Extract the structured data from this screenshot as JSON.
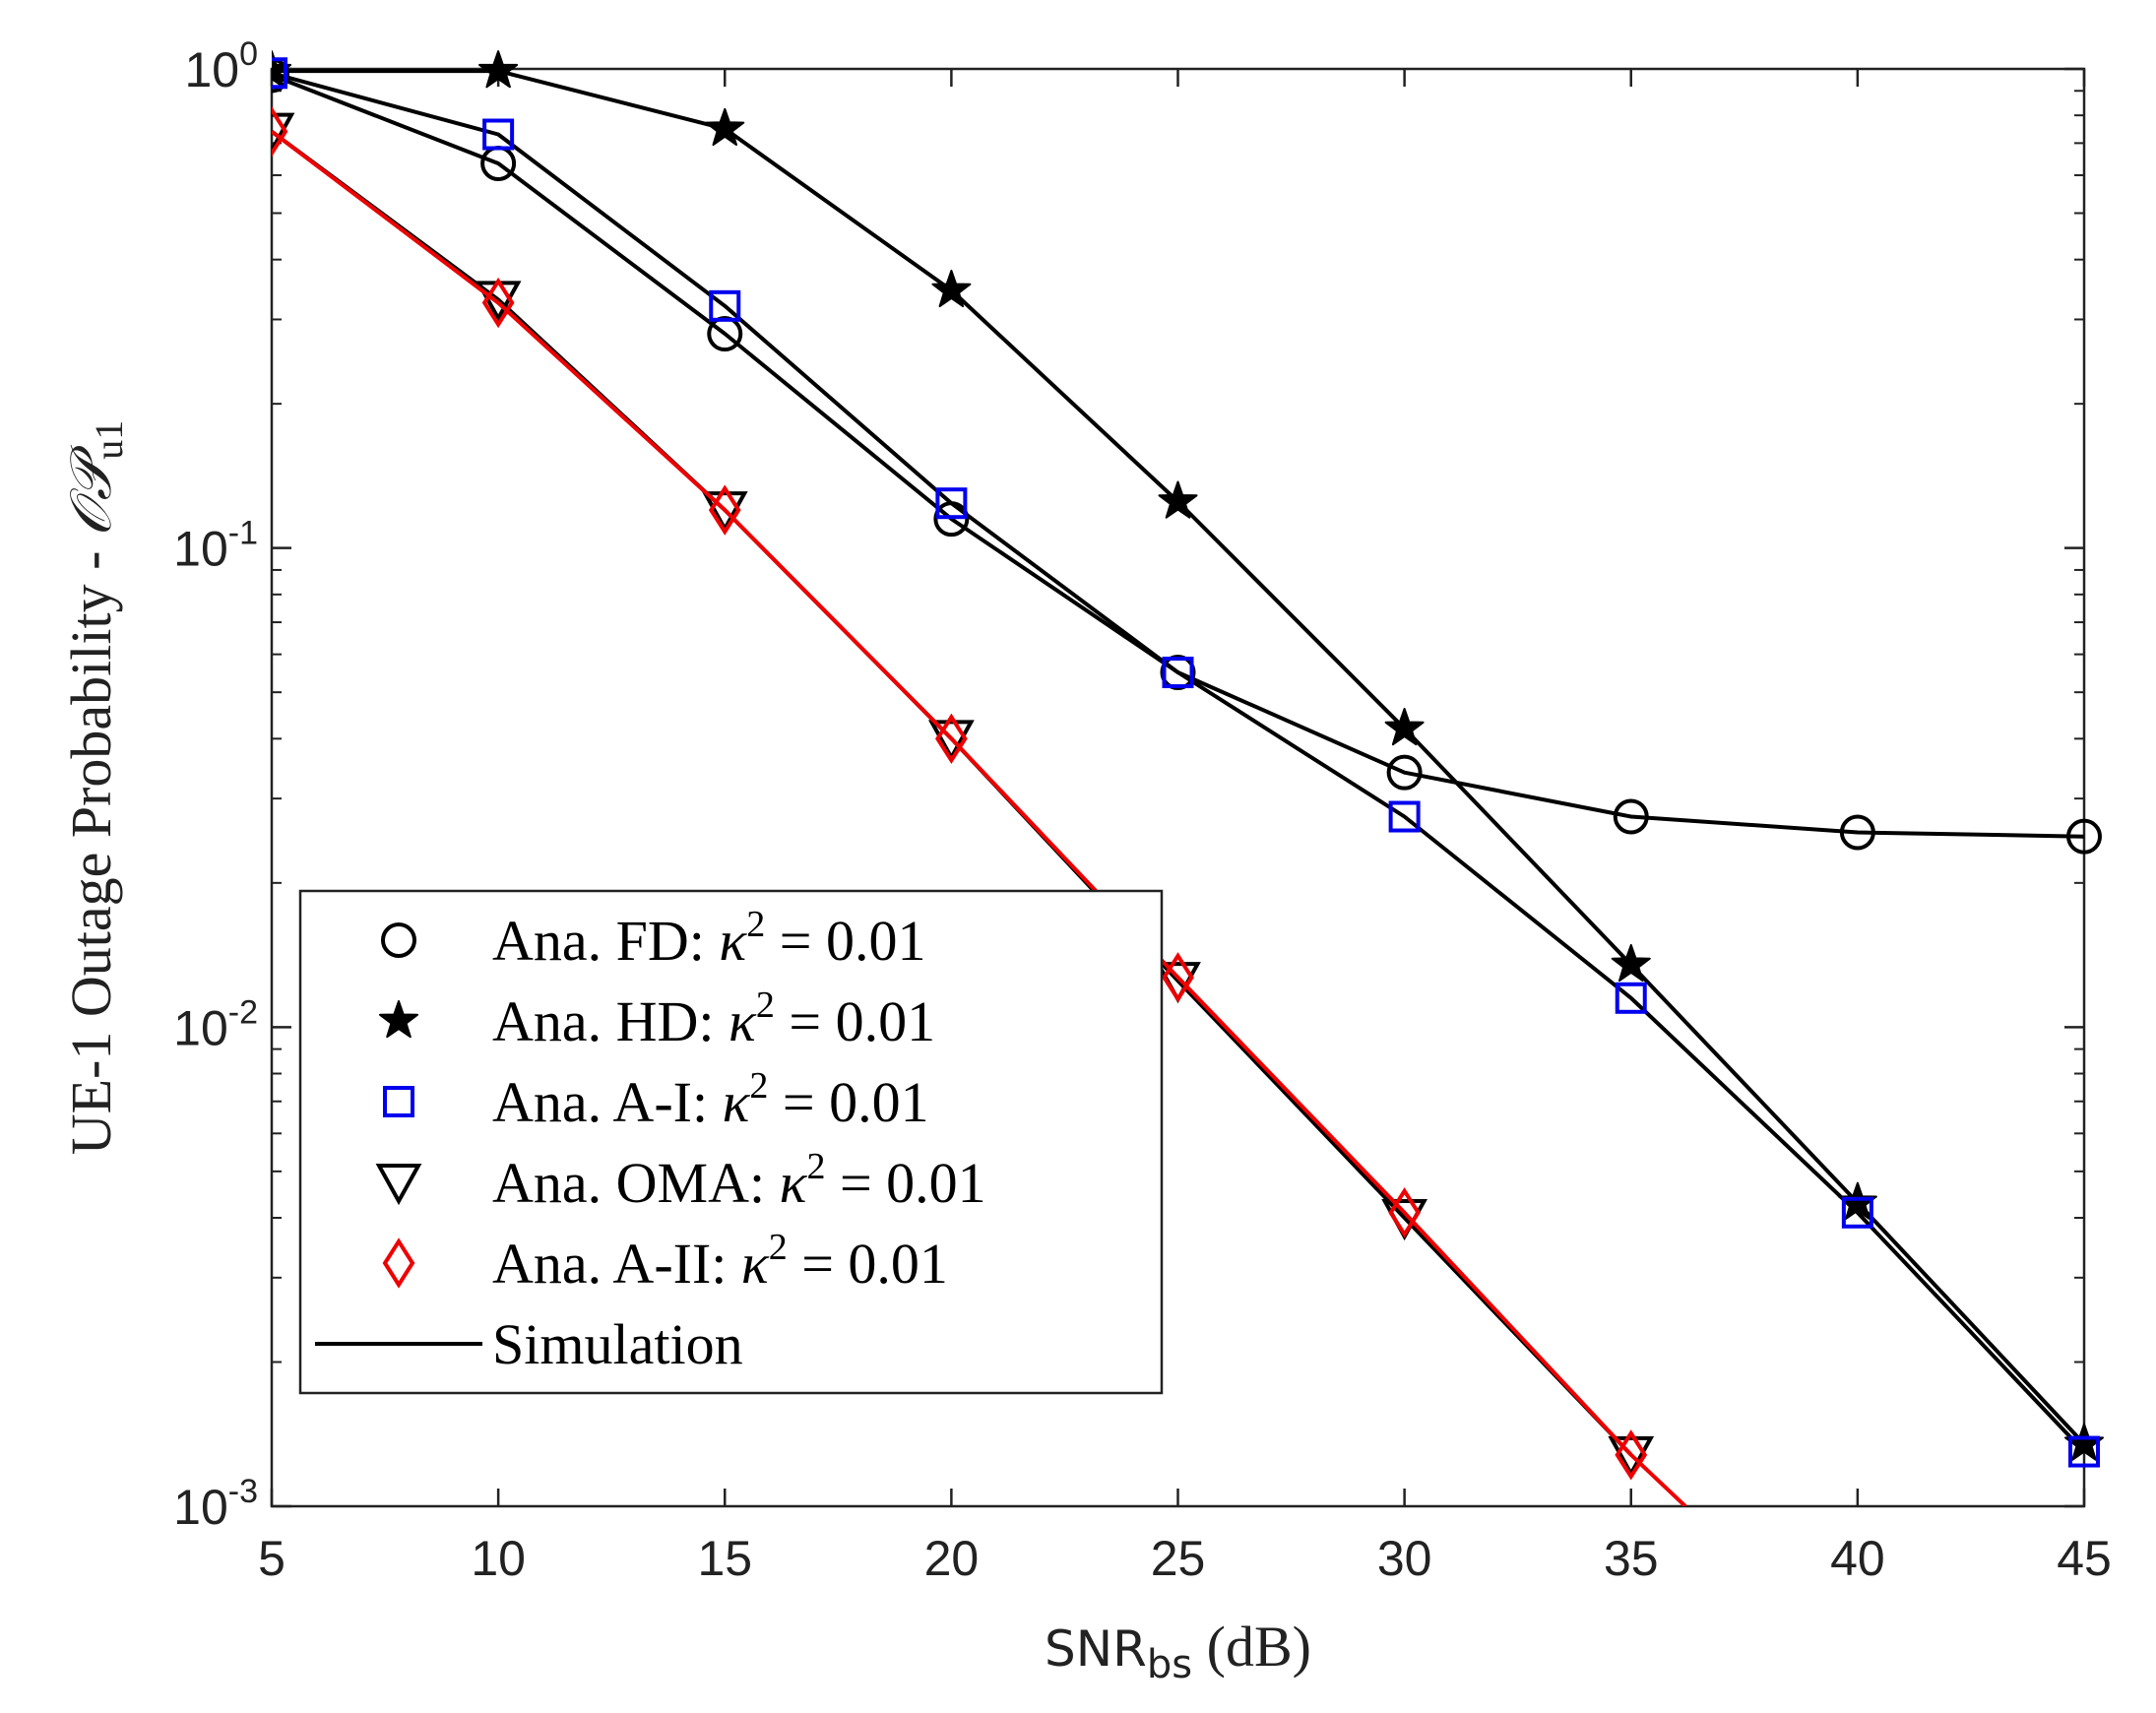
{
  "chart_data": {
    "type": "line",
    "yscale": "log",
    "xlim": [
      5,
      45
    ],
    "ylim": [
      0.001,
      1
    ],
    "xticks": [
      5,
      10,
      15,
      20,
      25,
      30,
      35,
      40,
      45
    ],
    "xtick_labels": [
      "5",
      "10",
      "15",
      "20",
      "25",
      "30",
      "35",
      "40",
      "45"
    ],
    "yticks": [
      {
        "value": 1,
        "base": "10",
        "exp": "0"
      },
      {
        "value": 0.1,
        "base": "10",
        "exp": "-1"
      },
      {
        "value": 0.01,
        "base": "10",
        "exp": "-2"
      },
      {
        "value": 0.001,
        "base": "10",
        "exp": "-3"
      }
    ],
    "xlabel": {
      "main": "SNR",
      "sub": "bs",
      "unit": " (dB)"
    },
    "ylabel": {
      "main": "UE-1 Outage Probability - ",
      "sym": "𝒪𝒫",
      "sub": "u1"
    },
    "grid": false,
    "legend_position": "bottom-left",
    "series": [
      {
        "name": "Ana. FD",
        "legend_label": "Ana.  FD: ",
        "marker": "circle",
        "color": "#000000",
        "line_color": "#000000",
        "x": [
          5,
          10,
          15,
          20,
          25,
          30,
          35,
          40,
          45
        ],
        "y": [
          0.97,
          0.635,
          0.28,
          0.115,
          0.055,
          0.034,
          0.0275,
          0.0255,
          0.025
        ]
      },
      {
        "name": "Ana. HD",
        "legend_label": "Ana.  HD: ",
        "marker": "star",
        "color": "#000000",
        "line_color": "#000000",
        "x": [
          5,
          10,
          15,
          20,
          25,
          30,
          35,
          40,
          45
        ],
        "y": [
          0.99,
          0.99,
          0.75,
          0.345,
          0.125,
          0.042,
          0.0135,
          0.0043,
          0.00135
        ]
      },
      {
        "name": "Ana. A-I",
        "legend_label": "Ana.  A-I: ",
        "marker": "square",
        "color": "#0000ee",
        "line_color": "#000000",
        "x": [
          5,
          10,
          15,
          20,
          25,
          30,
          35,
          40,
          45
        ],
        "y": [
          0.98,
          0.73,
          0.32,
          0.124,
          0.055,
          0.0275,
          0.0115,
          0.0041,
          0.0013
        ]
      },
      {
        "name": "Ana. OMA",
        "legend_label": "Ana.  OMA: ",
        "marker": "triangle-down",
        "color": "#000000",
        "line_color": "#000000",
        "x": [
          5,
          10,
          15,
          20,
          25,
          30,
          35
        ],
        "y": [
          0.74,
          0.33,
          0.12,
          0.04,
          0.0125,
          0.004,
          0.00128
        ]
      },
      {
        "name": "Ana. A-II",
        "legend_label": "Ana.  A-II: ",
        "marker": "diamond",
        "color": "#ee0000",
        "line_color": "#ee0000",
        "x": [
          5,
          10,
          15,
          20,
          25,
          30,
          35,
          36.2
        ],
        "y": [
          0.74,
          0.325,
          0.12,
          0.04,
          0.0127,
          0.0041,
          0.00128,
          0.001
        ]
      }
    ],
    "legend_math": {
      "symbol": "κ",
      "power": "2",
      "rest": " = 0.01"
    },
    "simulation_label": "Simulation"
  }
}
